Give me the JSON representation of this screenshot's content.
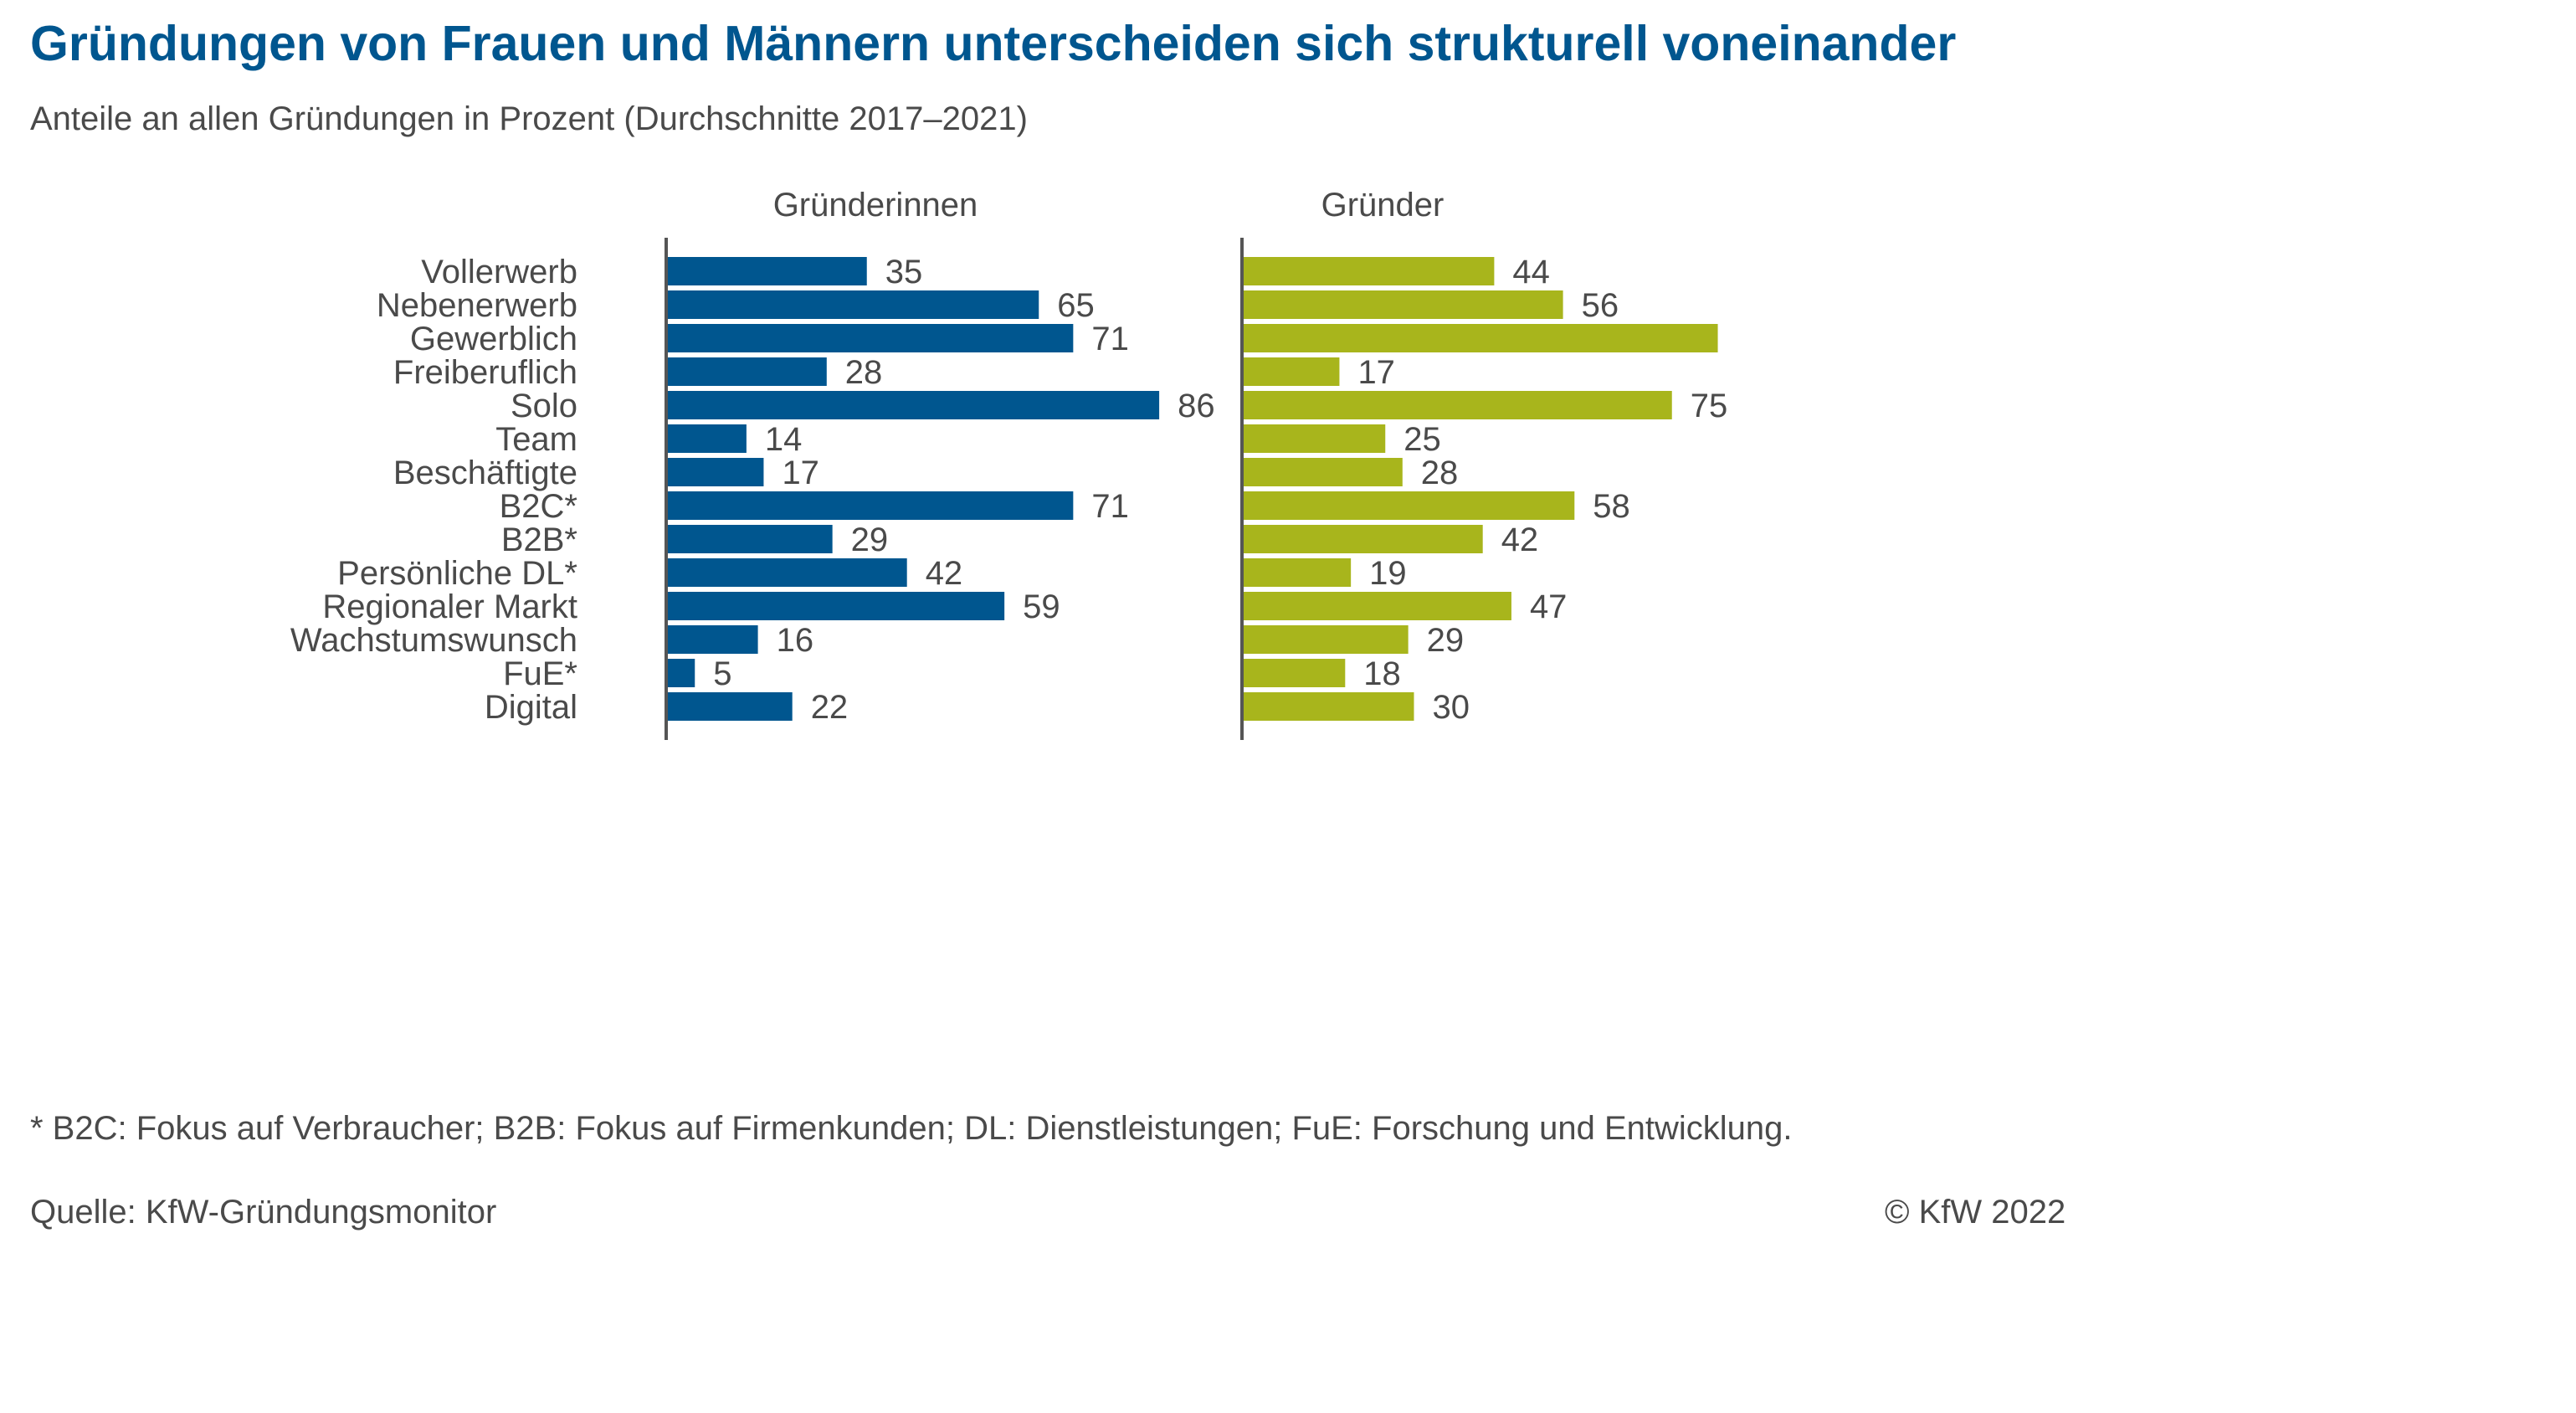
{
  "title": "Gründungen von Frauen und Männern unterscheiden sich strukturell voneinander",
  "subtitle": "Anteile an allen Gründungen in Prozent (Durchschnitte 2017–2021)",
  "footnote": "* B2C: Fokus auf Verbraucher; B2B: Fokus auf Firmenkunden; DL: Dienstleistungen; FuE: Forschung und Entwicklung.",
  "source": "Quelle: KfW-Gründungsmonitor",
  "copyright": "© KfW 2022",
  "colors": {
    "gruenderinnen": "#00568f",
    "gruender": "#a8b51c",
    "axis": "#555555",
    "text": "#4a4a4a"
  },
  "chart_data": {
    "type": "bar",
    "orientation": "horizontal",
    "groups": [
      [
        "Vollerwerb",
        "Nebenerwerb"
      ],
      [
        "Gewerblich",
        "Freiberuflich"
      ],
      [
        "Solo",
        "Team"
      ],
      [
        "Beschäftigte"
      ],
      [
        "B2C*",
        "B2B*"
      ],
      [
        "Persönliche DL*"
      ],
      [
        "Regionaler Markt"
      ],
      [
        "Wachstumswunsch"
      ],
      [
        "FuE*"
      ],
      [
        "Digital"
      ]
    ],
    "categories": [
      "Vollerwerb",
      "Nebenerwerb",
      "Gewerblich",
      "Freiberuflich",
      "Solo",
      "Team",
      "Beschäftigte",
      "B2C*",
      "B2B*",
      "Persönliche DL*",
      "Regionaler Markt",
      "Wachstumswunsch",
      "FuE*",
      "Digital"
    ],
    "series": [
      {
        "name": "Gründerinnen",
        "values": [
          35,
          65,
          71,
          28,
          86,
          14,
          17,
          71,
          29,
          42,
          59,
          16,
          5,
          22
        ]
      },
      {
        "name": "Gründer",
        "values": [
          44,
          56,
          null,
          17,
          75,
          25,
          28,
          58,
          42,
          19,
          47,
          29,
          18,
          30
        ]
      }
    ],
    "xlim": [
      0,
      100
    ],
    "grid": false,
    "legend": "panel headers above each panel"
  }
}
